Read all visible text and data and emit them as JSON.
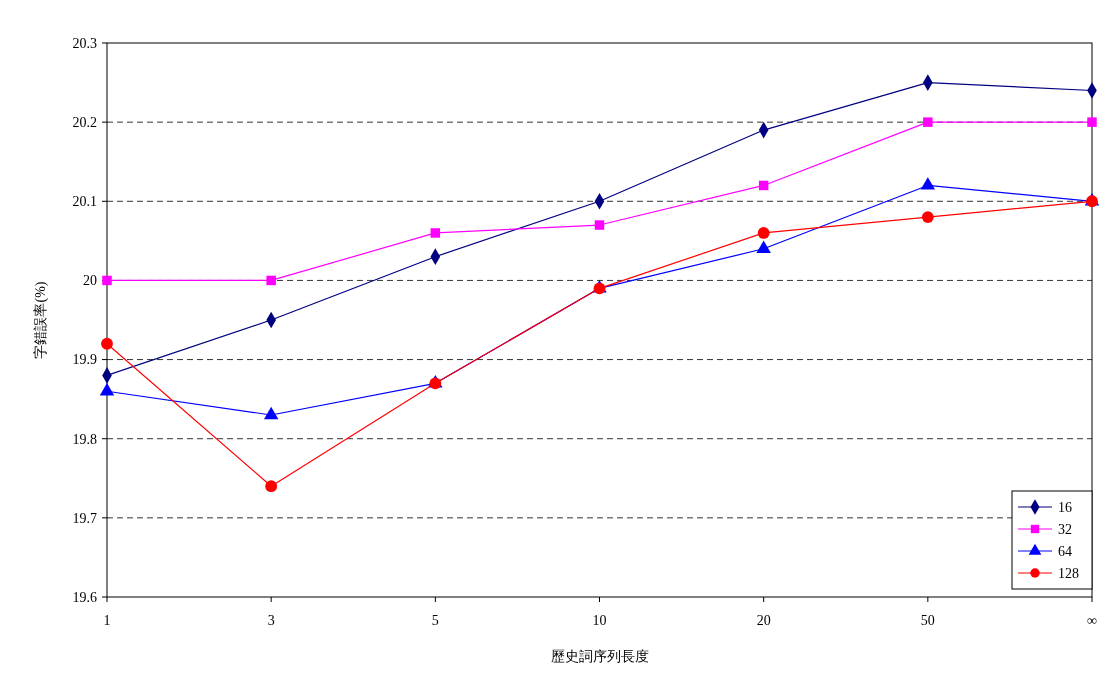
{
  "chart_data": {
    "type": "line",
    "xlabel": "歷史詞序列長度",
    "ylabel": "字錯誤率(%)",
    "categories": [
      "1",
      "3",
      "5",
      "10",
      "20",
      "50",
      "∞"
    ],
    "ylim": [
      19.6,
      20.3
    ],
    "yticks": [
      19.6,
      19.7,
      19.8,
      19.9,
      20,
      20.1,
      20.2,
      20.3
    ],
    "grid": "y",
    "legend": "bottom right",
    "line_style": "solid",
    "series": [
      {
        "name": "16",
        "color": "#000080",
        "marker": "diamond",
        "values": [
          19.88,
          19.95,
          20.03,
          20.1,
          20.19,
          20.25,
          20.24
        ]
      },
      {
        "name": "32",
        "color": "#ff00ff",
        "marker": "square",
        "values": [
          20.0,
          20.0,
          20.06,
          20.07,
          20.12,
          20.2,
          20.2
        ]
      },
      {
        "name": "64",
        "color": "#0000ff",
        "marker": "triangle",
        "values": [
          19.86,
          19.83,
          19.87,
          19.99,
          20.04,
          20.12,
          20.1
        ]
      },
      {
        "name": "128",
        "color": "#ff0000",
        "marker": "circle",
        "values": [
          19.92,
          19.74,
          19.87,
          19.99,
          20.06,
          20.08,
          20.1
        ]
      }
    ]
  }
}
